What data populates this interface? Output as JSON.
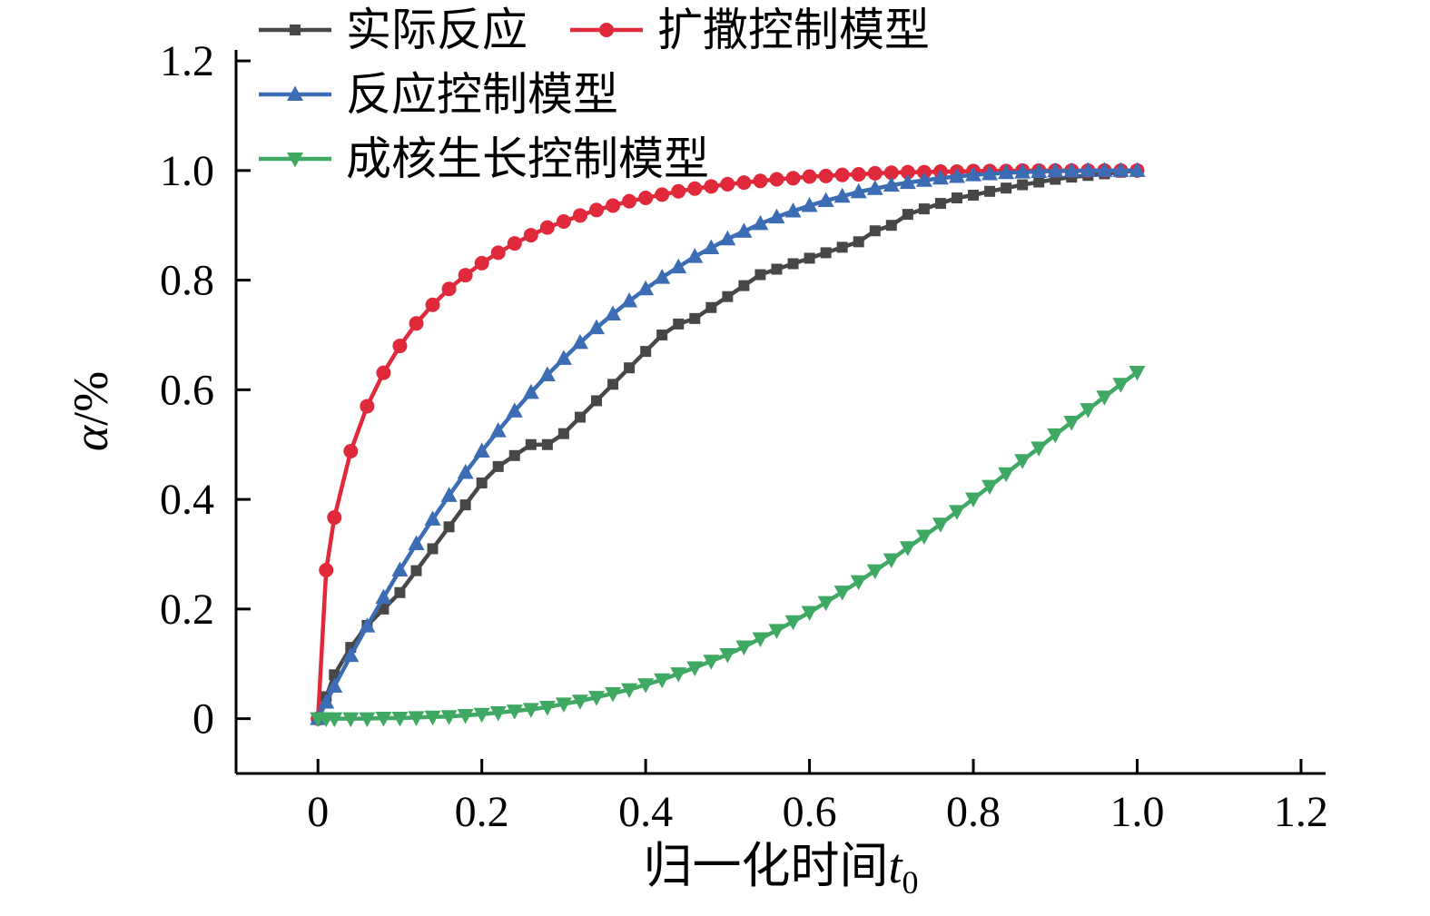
{
  "chart_data": {
    "type": "line",
    "title": "",
    "xlabel": "归一化时间t0",
    "xlabel_text": "归一化时间",
    "xlabel_var": "t",
    "xlabel_sub": "0",
    "ylabel": "α/%",
    "ylabel_var": "α",
    "ylabel_rest": "/%",
    "xlim": [
      -0.1,
      1.23
    ],
    "ylim": [
      -0.1,
      1.22
    ],
    "grid": false,
    "legend_position": "top-left-inside",
    "xticks": [
      0,
      0.2,
      0.4,
      0.6,
      0.8,
      1.0,
      1.2
    ],
    "xtick_labels": [
      "0",
      "0.2",
      "0.4",
      "0.6",
      "0.8",
      "1.0",
      "1.2"
    ],
    "yticks": [
      0,
      0.2,
      0.4,
      0.6,
      0.8,
      1.0,
      1.2
    ],
    "ytick_labels": [
      "0",
      "0.2",
      "0.4",
      "0.6",
      "0.8",
      "1.0",
      "1.2"
    ],
    "x": [
      0,
      0.01,
      0.02,
      0.04,
      0.06,
      0.08,
      0.1,
      0.12,
      0.14,
      0.16,
      0.18,
      0.2,
      0.22,
      0.24,
      0.26,
      0.28,
      0.3,
      0.32,
      0.34,
      0.36,
      0.38,
      0.4,
      0.42,
      0.44,
      0.46,
      0.48,
      0.5,
      0.52,
      0.54,
      0.56,
      0.58,
      0.6,
      0.62,
      0.64,
      0.66,
      0.68,
      0.7,
      0.72,
      0.74,
      0.76,
      0.78,
      0.8,
      0.82,
      0.84,
      0.86,
      0.88,
      0.9,
      0.92,
      0.94,
      0.96,
      0.98,
      1.0
    ],
    "series": [
      {
        "id": "actual",
        "name": "实际反应",
        "color": "#474747",
        "marker": "square",
        "values": [
          0,
          0.04,
          0.08,
          0.13,
          0.17,
          0.2,
          0.23,
          0.27,
          0.31,
          0.35,
          0.39,
          0.43,
          0.46,
          0.48,
          0.5,
          0.5,
          0.52,
          0.55,
          0.58,
          0.61,
          0.64,
          0.67,
          0.7,
          0.72,
          0.73,
          0.75,
          0.77,
          0.79,
          0.81,
          0.82,
          0.83,
          0.84,
          0.85,
          0.86,
          0.87,
          0.89,
          0.9,
          0.92,
          0.93,
          0.94,
          0.95,
          0.955,
          0.962,
          0.968,
          0.974,
          0.979,
          0.984,
          0.988,
          0.991,
          0.994,
          0.997,
          1.0
        ]
      },
      {
        "id": "diffusion",
        "name": "扩撒控制模型",
        "color": "#e0293a",
        "marker": "circle",
        "values": [
          0,
          0.271,
          0.367,
          0.488,
          0.57,
          0.631,
          0.68,
          0.721,
          0.755,
          0.784,
          0.809,
          0.831,
          0.85,
          0.867,
          0.882,
          0.896,
          0.907,
          0.918,
          0.928,
          0.936,
          0.944,
          0.95,
          0.956,
          0.962,
          0.967,
          0.971,
          0.975,
          0.978,
          0.981,
          0.984,
          0.986,
          0.989,
          0.99,
          0.992,
          0.993,
          0.995,
          0.996,
          0.997,
          0.997,
          0.998,
          0.998,
          0.999,
          0.999,
          0.999,
          1.0,
          1.0,
          1.0,
          1.0,
          1.0,
          1.0,
          1.0,
          1.0
        ]
      },
      {
        "id": "reaction",
        "name": "反应控制模型",
        "color": "#3c6cb4",
        "marker": "triangle-up",
        "values": [
          0,
          0.03,
          0.059,
          0.115,
          0.169,
          0.221,
          0.271,
          0.319,
          0.364,
          0.407,
          0.449,
          0.488,
          0.525,
          0.561,
          0.595,
          0.627,
          0.657,
          0.686,
          0.713,
          0.738,
          0.762,
          0.784,
          0.805,
          0.824,
          0.843,
          0.859,
          0.875,
          0.889,
          0.903,
          0.915,
          0.926,
          0.936,
          0.945,
          0.953,
          0.961,
          0.967,
          0.973,
          0.978,
          0.982,
          0.986,
          0.989,
          0.992,
          0.994,
          0.996,
          0.997,
          0.998,
          0.999,
          0.999,
          1.0,
          1.0,
          1.0,
          1.0
        ]
      },
      {
        "id": "nucleation",
        "name": "成核生长控制模型",
        "color": "#3fa963",
        "marker": "triangle-down",
        "values": [
          0,
          0.0,
          0.0,
          0.0,
          0.0,
          0.001,
          0.001,
          0.002,
          0.003,
          0.004,
          0.006,
          0.008,
          0.011,
          0.014,
          0.017,
          0.021,
          0.027,
          0.032,
          0.039,
          0.046,
          0.053,
          0.062,
          0.071,
          0.082,
          0.093,
          0.105,
          0.117,
          0.131,
          0.146,
          0.161,
          0.177,
          0.194,
          0.212,
          0.231,
          0.25,
          0.27,
          0.29,
          0.312,
          0.333,
          0.355,
          0.378,
          0.401,
          0.424,
          0.447,
          0.471,
          0.494,
          0.518,
          0.541,
          0.564,
          0.587,
          0.61,
          0.632
        ]
      }
    ]
  }
}
